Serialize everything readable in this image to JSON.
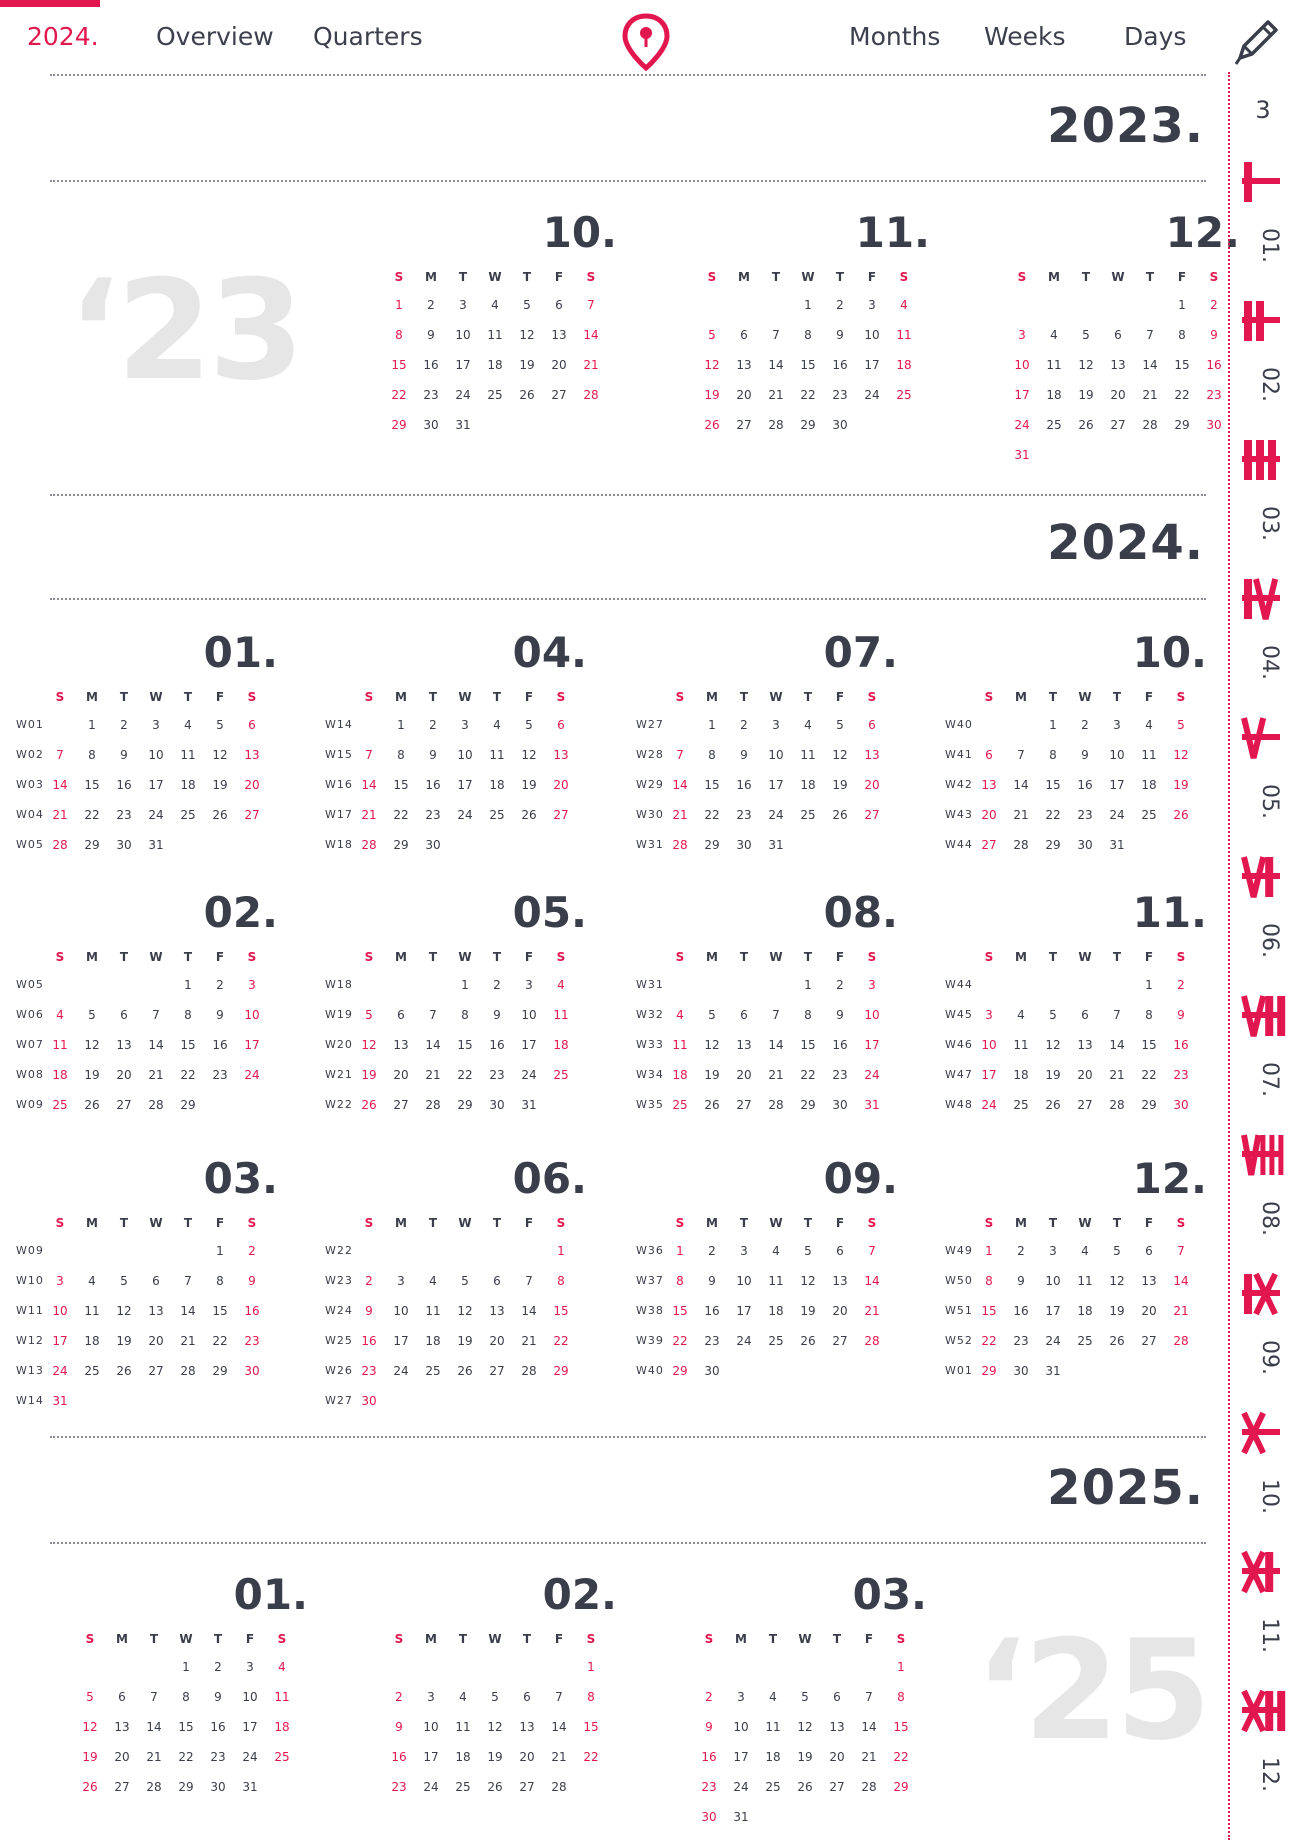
{
  "nav": {
    "year": "2024.",
    "overview": "Overview",
    "quarters": "Quarters",
    "months": "Months",
    "weeks": "Weeks",
    "days": "Days"
  },
  "icons": {
    "pin": "map-pin-icon",
    "pencil": "pencil-icon"
  },
  "colors": {
    "accent": "#e3174f",
    "text": "#3a3d4a",
    "watermark": "#e6e6e6"
  },
  "weekday_letters": [
    "S",
    "M",
    "T",
    "W",
    "T",
    "F",
    "S"
  ],
  "sections": [
    {
      "year": "2023.",
      "watermark": "‘23"
    },
    {
      "year": "2024."
    },
    {
      "year": "2025.",
      "watermark": "‘25"
    }
  ],
  "calendars": [
    {
      "title": "10.",
      "year": 2023,
      "month": 10,
      "weeks": null
    },
    {
      "title": "11.",
      "year": 2023,
      "month": 11,
      "weeks": null
    },
    {
      "title": "12.",
      "year": 2023,
      "month": 12,
      "weeks": null
    },
    {
      "title": "01.",
      "year": 2024,
      "month": 1,
      "weeks": [
        "W01",
        "W02",
        "W03",
        "W04",
        "W05"
      ]
    },
    {
      "title": "04.",
      "year": 2024,
      "month": 4,
      "weeks": [
        "W14",
        "W15",
        "W16",
        "W17",
        "W18"
      ]
    },
    {
      "title": "07.",
      "year": 2024,
      "month": 7,
      "weeks": [
        "W27",
        "W28",
        "W29",
        "W30",
        "W31"
      ]
    },
    {
      "title": "10.",
      "year": 2024,
      "month": 10,
      "weeks": [
        "W40",
        "W41",
        "W42",
        "W43",
        "W44"
      ]
    },
    {
      "title": "02.",
      "year": 2024,
      "month": 2,
      "weeks": [
        "W05",
        "W06",
        "W07",
        "W08",
        "W09"
      ]
    },
    {
      "title": "05.",
      "year": 2024,
      "month": 5,
      "weeks": [
        "W18",
        "W19",
        "W20",
        "W21",
        "W22"
      ]
    },
    {
      "title": "08.",
      "year": 2024,
      "month": 8,
      "weeks": [
        "W31",
        "W32",
        "W33",
        "W34",
        "W35"
      ]
    },
    {
      "title": "11.",
      "year": 2024,
      "month": 11,
      "weeks": [
        "W44",
        "W45",
        "W46",
        "W47",
        "W48"
      ]
    },
    {
      "title": "03.",
      "year": 2024,
      "month": 3,
      "weeks": [
        "W09",
        "W10",
        "W11",
        "W12",
        "W13",
        "W14"
      ]
    },
    {
      "title": "06.",
      "year": 2024,
      "month": 6,
      "weeks": [
        "W22",
        "W23",
        "W24",
        "W25",
        "W26",
        "W27"
      ]
    },
    {
      "title": "09.",
      "year": 2024,
      "month": 9,
      "weeks": [
        "W36",
        "W37",
        "W38",
        "W39",
        "W40"
      ]
    },
    {
      "title": "12.",
      "year": 2024,
      "month": 12,
      "weeks": [
        "W49",
        "W50",
        "W51",
        "W52",
        "W01"
      ]
    },
    {
      "title": "01.",
      "year": 2025,
      "month": 1,
      "weeks": null
    },
    {
      "title": "02.",
      "year": 2025,
      "month": 2,
      "weeks": null
    },
    {
      "title": "03.",
      "year": 2025,
      "month": 3,
      "weeks": null
    }
  ],
  "sidebar": {
    "count": "3",
    "months": [
      {
        "roman": "I",
        "num": "01."
      },
      {
        "roman": "II",
        "num": "02."
      },
      {
        "roman": "III",
        "num": "03."
      },
      {
        "roman": "IV",
        "num": "04."
      },
      {
        "roman": "V",
        "num": "05."
      },
      {
        "roman": "VI",
        "num": "06."
      },
      {
        "roman": "VII",
        "num": "07."
      },
      {
        "roman": "VIII",
        "num": "08."
      },
      {
        "roman": "IX",
        "num": "09."
      },
      {
        "roman": "X",
        "num": "10."
      },
      {
        "roman": "XI",
        "num": "11."
      },
      {
        "roman": "XII",
        "num": "12."
      }
    ]
  }
}
